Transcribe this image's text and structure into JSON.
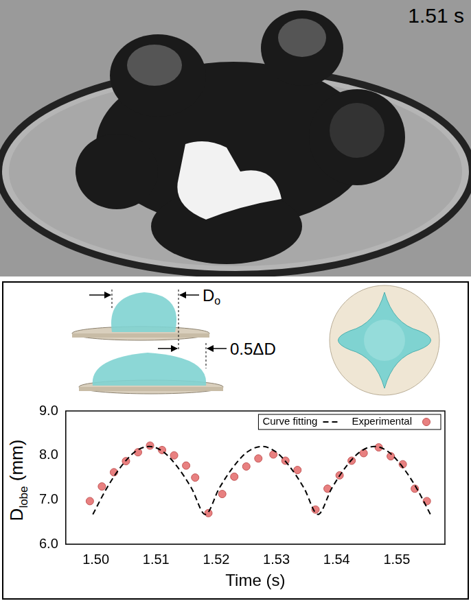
{
  "photo": {
    "timestamp": "1.51 s"
  },
  "schematic": {
    "d0_label": {
      "main": "D",
      "sub": "o"
    },
    "delta_label": "0.5ΔD"
  },
  "chart_data": {
    "type": "line",
    "x_label": "Time (s)",
    "y_label": {
      "main": "D",
      "sub": "lobe",
      "rest": " (mm)"
    },
    "xlim": [
      1.495,
      1.558
    ],
    "xticks": [
      {
        "value": 1.5,
        "label": "1.50"
      },
      {
        "value": 1.51,
        "label": "1.51"
      },
      {
        "value": 1.52,
        "label": "1.52"
      },
      {
        "value": 1.53,
        "label": "1.53"
      },
      {
        "value": 1.54,
        "label": "1.54"
      },
      {
        "value": 1.55,
        "label": "1.55"
      }
    ],
    "ylim": [
      6.0,
      9.0
    ],
    "yticks": [
      {
        "value": 6.0,
        "label": "6.0"
      },
      {
        "value": 7.0,
        "label": "7.0"
      },
      {
        "value": 8.0,
        "label": "8.0"
      },
      {
        "value": 9.0,
        "label": "9.0"
      }
    ],
    "grid": false,
    "legend": "upper right",
    "series": [
      {
        "name": "Curve fitting",
        "type": "line",
        "line_style": "dashed",
        "color": "#000000",
        "x": [
          1.4995,
          1.5018,
          1.5042,
          1.5065,
          1.5089,
          1.5112,
          1.5135,
          1.5159,
          1.5182,
          1.5205,
          1.5229,
          1.5252,
          1.5276,
          1.5299,
          1.5322,
          1.5346,
          1.5369,
          1.5392,
          1.5416,
          1.5439,
          1.5463,
          1.5486,
          1.5509,
          1.5533,
          1.5556
        ],
        "values": [
          6.67,
          7.26,
          7.75,
          8.08,
          8.2,
          8.08,
          7.75,
          7.26,
          6.67,
          7.26,
          7.75,
          8.08,
          8.2,
          8.08,
          7.75,
          7.26,
          6.67,
          7.26,
          7.75,
          8.08,
          8.2,
          8.08,
          7.75,
          7.26,
          6.67
        ]
      },
      {
        "name": "Experimental",
        "type": "scatter",
        "marker": "circle",
        "color": "#e88080",
        "x": [
          1.499,
          1.501,
          1.503,
          1.505,
          1.507,
          1.509,
          1.511,
          1.513,
          1.515,
          1.5165,
          1.5187,
          1.521,
          1.523,
          1.525,
          1.527,
          1.5295,
          1.5315,
          1.5335,
          1.5365,
          1.5385,
          1.5405,
          1.5425,
          1.5445,
          1.547,
          1.549,
          1.551,
          1.553,
          1.555
        ],
        "values": [
          6.97,
          7.3,
          7.62,
          7.87,
          8.07,
          8.22,
          8.12,
          8.0,
          7.77,
          7.5,
          6.7,
          7.13,
          7.52,
          7.75,
          7.93,
          8.02,
          7.88,
          7.67,
          6.78,
          7.25,
          7.55,
          7.88,
          8.05,
          8.18,
          7.98,
          7.8,
          7.25,
          6.97
        ]
      }
    ]
  }
}
